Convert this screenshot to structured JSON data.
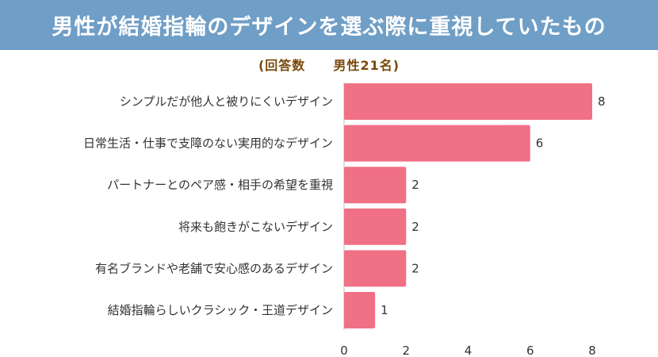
{
  "title": "男性が結婚指輪のデザインを選ぶ際に重視していたもの",
  "subtitle": {
    "open": "(回答数",
    "group": "男性21名)"
  },
  "colors": {
    "header_bg": "#6f9ec6",
    "header_text": "#ffffff",
    "subtitle_text": "#7a4a0c",
    "bar": "#f07085",
    "label_text": "#333333",
    "axis_line": "#bdbdbd"
  },
  "chart_data": {
    "type": "bar",
    "orientation": "horizontal",
    "categories": [
      "シンプルだが他人と被りにくいデザイン",
      "日常生活・仕事で支障のない実用的なデザイン",
      "パートナーとのペア感・相手の希望を重視",
      "将来も飽きがこないデザイン",
      "有名ブランドや老舗で安心感のあるデザイン",
      "結婚指輪らしいクラシック・王道デザイン"
    ],
    "values": [
      8,
      6,
      2,
      2,
      2,
      1
    ],
    "xlim": [
      0,
      8
    ],
    "xticks": [
      0,
      2,
      4,
      6,
      8
    ],
    "grid": false,
    "data_labels": true
  }
}
